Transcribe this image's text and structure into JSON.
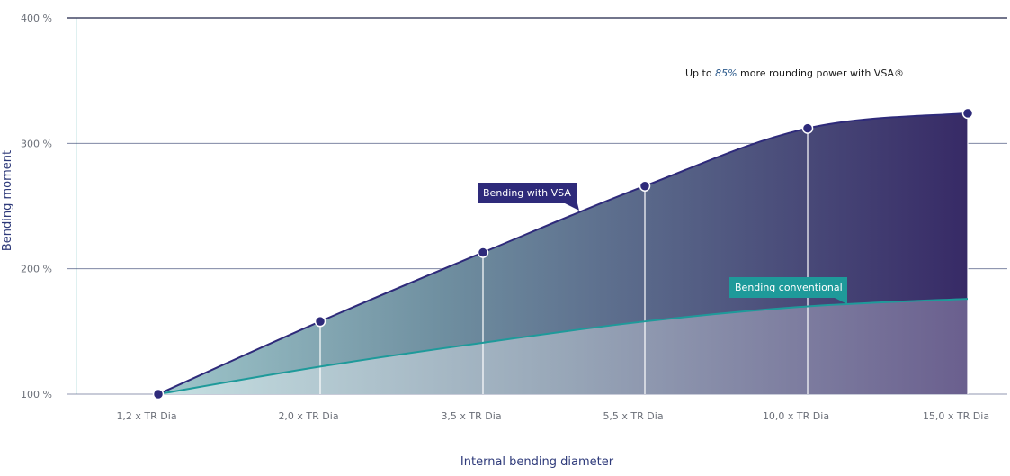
{
  "chart_data": {
    "type": "area",
    "categories": [
      "1,2 x TR Dia",
      "2,0 x TR Dia",
      "3,5 x TR Dia",
      "5,5 x TR Dia",
      "10,0 x TR Dia",
      "15,0 x TR Dia"
    ],
    "series": [
      {
        "name": "Bending with VSA",
        "values": [
          100,
          158,
          213,
          266,
          312,
          324
        ]
      },
      {
        "name": "Bending conventional",
        "values": [
          100,
          122,
          141,
          158,
          170,
          176
        ]
      }
    ],
    "xlabel": "Internal bending diameter",
    "ylabel": "Bending moment",
    "ylim": [
      100,
      400
    ],
    "yticks": [
      {
        "value": 100,
        "label": "100 %"
      },
      {
        "value": 200,
        "label": "200 %"
      },
      {
        "value": 300,
        "label": "300 %"
      },
      {
        "value": 400,
        "label": "400 %"
      }
    ],
    "grid": true,
    "annotation": {
      "prefix": "Up to ",
      "highlight": "85%",
      "suffix": " more rounding power with VSA®"
    },
    "colors": {
      "vsa_line": "#2e2a7a",
      "conventional_line": "#1e9a9a",
      "vsa_callout": "#2e2a7a",
      "conventional_callout": "#1e9a9a",
      "gradient_start": "#a8ccd0",
      "gradient_end": "#3a2d6b"
    }
  }
}
